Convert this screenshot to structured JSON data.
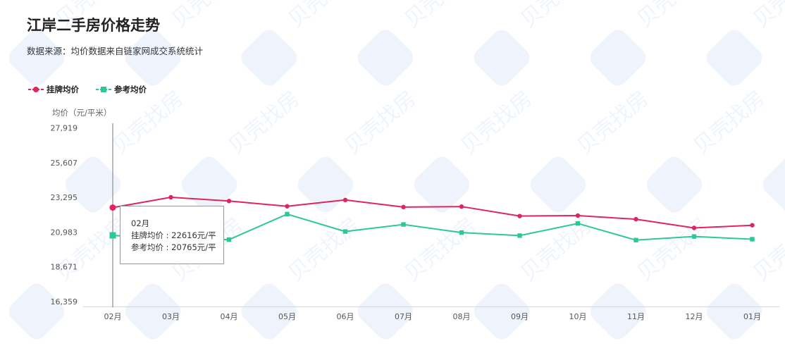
{
  "title": "江岸二手房价格走势",
  "subtitle": "数据来源：均价数据来自链家网成交系统统计",
  "watermark": "贝壳找房",
  "chart_data": {
    "type": "line",
    "title": "江岸二手房价格走势",
    "ylabel": "均价（元/平米）",
    "xlabel": "",
    "categories": [
      "02月",
      "03月",
      "04月",
      "05月",
      "06月",
      "07月",
      "08月",
      "09月",
      "10月",
      "11月",
      "12月",
      "01月"
    ],
    "yticks": [
      27919,
      25607,
      23295,
      20983,
      18671,
      16359
    ],
    "ytick_labels": [
      "27,919",
      "25,607",
      "23,295",
      "20,983",
      "18,671",
      "16,359"
    ],
    "ylim": [
      16359,
      27919
    ],
    "grid": false,
    "legend_position": "top-left",
    "series": [
      {
        "name": "挂牌均价",
        "color": "#e0245e",
        "marker": "circle",
        "values": [
          22616,
          23300,
          23050,
          22700,
          23120,
          22650,
          22680,
          22050,
          22080,
          21840,
          21260,
          21440
        ]
      },
      {
        "name": "参考均价",
        "color": "#2ec796",
        "marker": "square",
        "values": [
          20765,
          20500,
          20480,
          22180,
          21020,
          21490,
          20950,
          20750,
          21560,
          20450,
          20690,
          20510
        ]
      }
    ]
  },
  "tooltip": {
    "title": "02月",
    "line1": "挂牌均价 : 22616元/平",
    "line2": "参考均价 : 20765元/平"
  }
}
